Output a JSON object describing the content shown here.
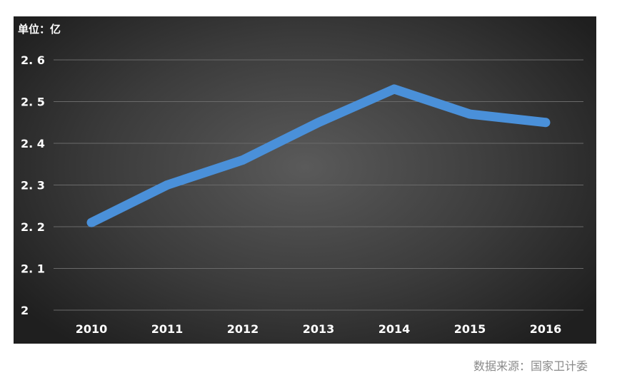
{
  "unit_label": "单位：亿",
  "source": "数据来源：国家卫计委",
  "colors": {
    "line": "#4a90d9",
    "grid": "#6a6a6a",
    "text": "#ffffff",
    "source": "#8a8a8a"
  },
  "chart_data": {
    "type": "line",
    "categories": [
      "2010",
      "2011",
      "2012",
      "2013",
      "2014",
      "2015",
      "2016"
    ],
    "series": [
      {
        "values": [
          2.21,
          2.3,
          2.36,
          2.45,
          2.53,
          2.47,
          2.45
        ]
      }
    ],
    "ylim": [
      2,
      2.6
    ],
    "y_ticks": [
      "2",
      "2.1",
      "2.2",
      "2.3",
      "2.4",
      "2.5",
      "2.6"
    ],
    "grid": true,
    "legend": "none"
  }
}
